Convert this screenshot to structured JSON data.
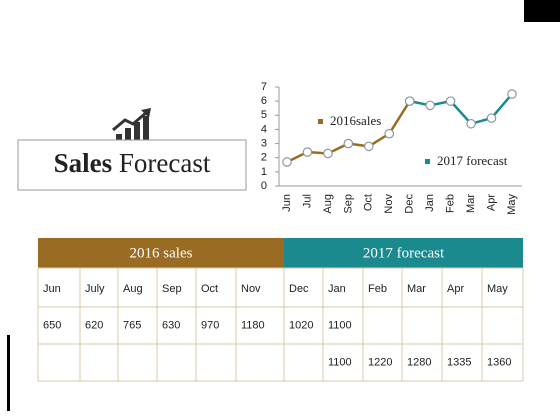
{
  "title": [
    "Sales",
    "Forecast"
  ],
  "chart_data": {
    "type": "line",
    "categories": [
      "Jun",
      "Jul",
      "Aug",
      "Sep",
      "Oct",
      "Nov",
      "Dec",
      "Jan",
      "Feb",
      "Mar",
      "Apr",
      "May"
    ],
    "series": [
      {
        "name": "2016sales",
        "color": "#9a6b22",
        "values": [
          1.7,
          2.4,
          2.3,
          3.0,
          2.8,
          3.7,
          6.0,
          null,
          null,
          null,
          null,
          null
        ]
      },
      {
        "name": "2017 forecast",
        "color": "#1b8a8e",
        "values": [
          null,
          null,
          null,
          null,
          null,
          null,
          6.0,
          5.7,
          6.0,
          4.4,
          4.8,
          6.5
        ]
      }
    ],
    "ylim": [
      0,
      7
    ],
    "yticks": [
      0,
      1,
      2,
      3,
      4,
      5,
      6,
      7
    ],
    "grid": false
  },
  "table": {
    "groups": [
      {
        "label": "2016 sales",
        "span": 6,
        "color": "#9a6b22"
      },
      {
        "label": "2017 forecast",
        "span": 6,
        "color": "#1b8a8e"
      }
    ],
    "months": [
      "Jun",
      "July",
      "Aug",
      "Sep",
      "Oct",
      "Nov",
      "Dec",
      "Jan",
      "Feb",
      "Mar",
      "Apr",
      "May"
    ],
    "rows": [
      [
        650,
        620,
        765,
        630,
        970,
        1180,
        1020,
        1100,
        null,
        null,
        null,
        null
      ],
      [
        null,
        null,
        null,
        null,
        null,
        null,
        null,
        1100,
        1220,
        1280,
        1335,
        1360
      ]
    ]
  }
}
